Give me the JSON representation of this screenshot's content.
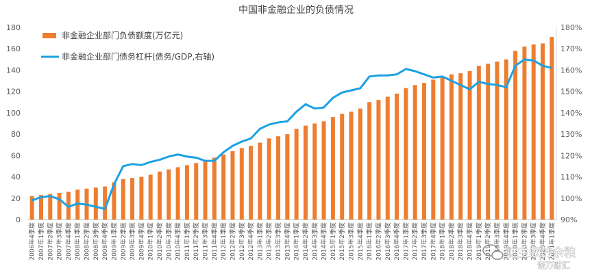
{
  "watermark": {
    "line1": "财主家的余粮",
    "line2": "诺万财汇"
  },
  "chart_data": {
    "type": "bar",
    "title": "中国非金融企业的负债情况",
    "categories": [
      "2006年4季度",
      "2007年1季度",
      "2007年2季度",
      "2007年3季度",
      "2007年4季度",
      "2008年1季度",
      "2008年2季度",
      "2008年3季度",
      "2008年4季度",
      "2009年1季度",
      "2009年2季度",
      "2009年3季度",
      "2009年4季度",
      "2010年1季度",
      "2010年2季度",
      "2010年3季度",
      "2010年4季度",
      "2011年1季度",
      "2011年2季度",
      "2011年3季度",
      "2011年4季度",
      "2012年1季度",
      "2012年2季度",
      "2012年3季度",
      "2012年4季度",
      "2013年1季度",
      "2013年2季度",
      "2013年3季度",
      "2013年4季度",
      "2014年1季度",
      "2014年2季度",
      "2014年3季度",
      "2014年4季度",
      "2015年1季度",
      "2015年2季度",
      "2015年3季度",
      "2015年4季度",
      "2016年1季度",
      "2016年2季度",
      "2016年3季度",
      "2016年4季度",
      "2017年1季度",
      "2017年2季度",
      "2017年3季度",
      "2017年4季度",
      "2018年1季度",
      "2018年2季度",
      "2018年3季度",
      "2018年4季度",
      "2019年1季度",
      "2019年2季度",
      "2019年3季度",
      "2019年4季度",
      "2020年1季度",
      "2020年2季度",
      "2020年3季度",
      "2020年4季度",
      "2021年1季度"
    ],
    "series": [
      {
        "name": "非金融企业部门负债额度(万亿元)",
        "type": "bar",
        "axis": "left",
        "color": "#ED7D31",
        "values": [
          22,
          23,
          24,
          25,
          26,
          28,
          29,
          30,
          31,
          35,
          38,
          39,
          40,
          42,
          45,
          47,
          49,
          51,
          53,
          56,
          58,
          61,
          64,
          67,
          69,
          72,
          76,
          78,
          80,
          85,
          88,
          90,
          92,
          96,
          99,
          101,
          104,
          110,
          112,
          115,
          118,
          123,
          126,
          128,
          131,
          133,
          136,
          137,
          139,
          144,
          146,
          148,
          150,
          158,
          162,
          164,
          165,
          171
        ]
      },
      {
        "name": "非金融企业部门债务杠杆(债务/GDP,右轴)",
        "type": "line",
        "axis": "right",
        "color": "#1BA1E2",
        "values": [
          99.0,
          100.5,
          101.0,
          99.5,
          96.0,
          97.5,
          97.0,
          96.0,
          95.0,
          106.5,
          115.0,
          116.0,
          115.5,
          117.0,
          118.0,
          119.5,
          120.5,
          119.5,
          119.0,
          117.5,
          117.5,
          121.5,
          124.5,
          126.5,
          128.0,
          132.5,
          134.5,
          135.5,
          136.0,
          140.5,
          144.0,
          142.0,
          142.5,
          147.0,
          149.5,
          150.5,
          151.5,
          157.0,
          157.5,
          157.5,
          158.0,
          160.5,
          159.5,
          158.0,
          156.5,
          157.0,
          155.0,
          153.0,
          151.0,
          154.5,
          153.5,
          153.0,
          152.0,
          162.0,
          165.0,
          164.5,
          162.0,
          161.0
        ]
      }
    ],
    "yaxis_left": {
      "min": 0,
      "max": 180,
      "step": 20,
      "ticks": [
        "0",
        "20",
        "40",
        "60",
        "80",
        "100",
        "120",
        "140",
        "160",
        "180"
      ]
    },
    "yaxis_right": {
      "min": 90,
      "max": 180,
      "step": 10,
      "ticks": [
        "90%",
        "100%",
        "110%",
        "120%",
        "130%",
        "140%",
        "150%",
        "160%",
        "170%",
        "180%"
      ]
    },
    "legend": {
      "placement": "top-left"
    },
    "grid": false
  }
}
